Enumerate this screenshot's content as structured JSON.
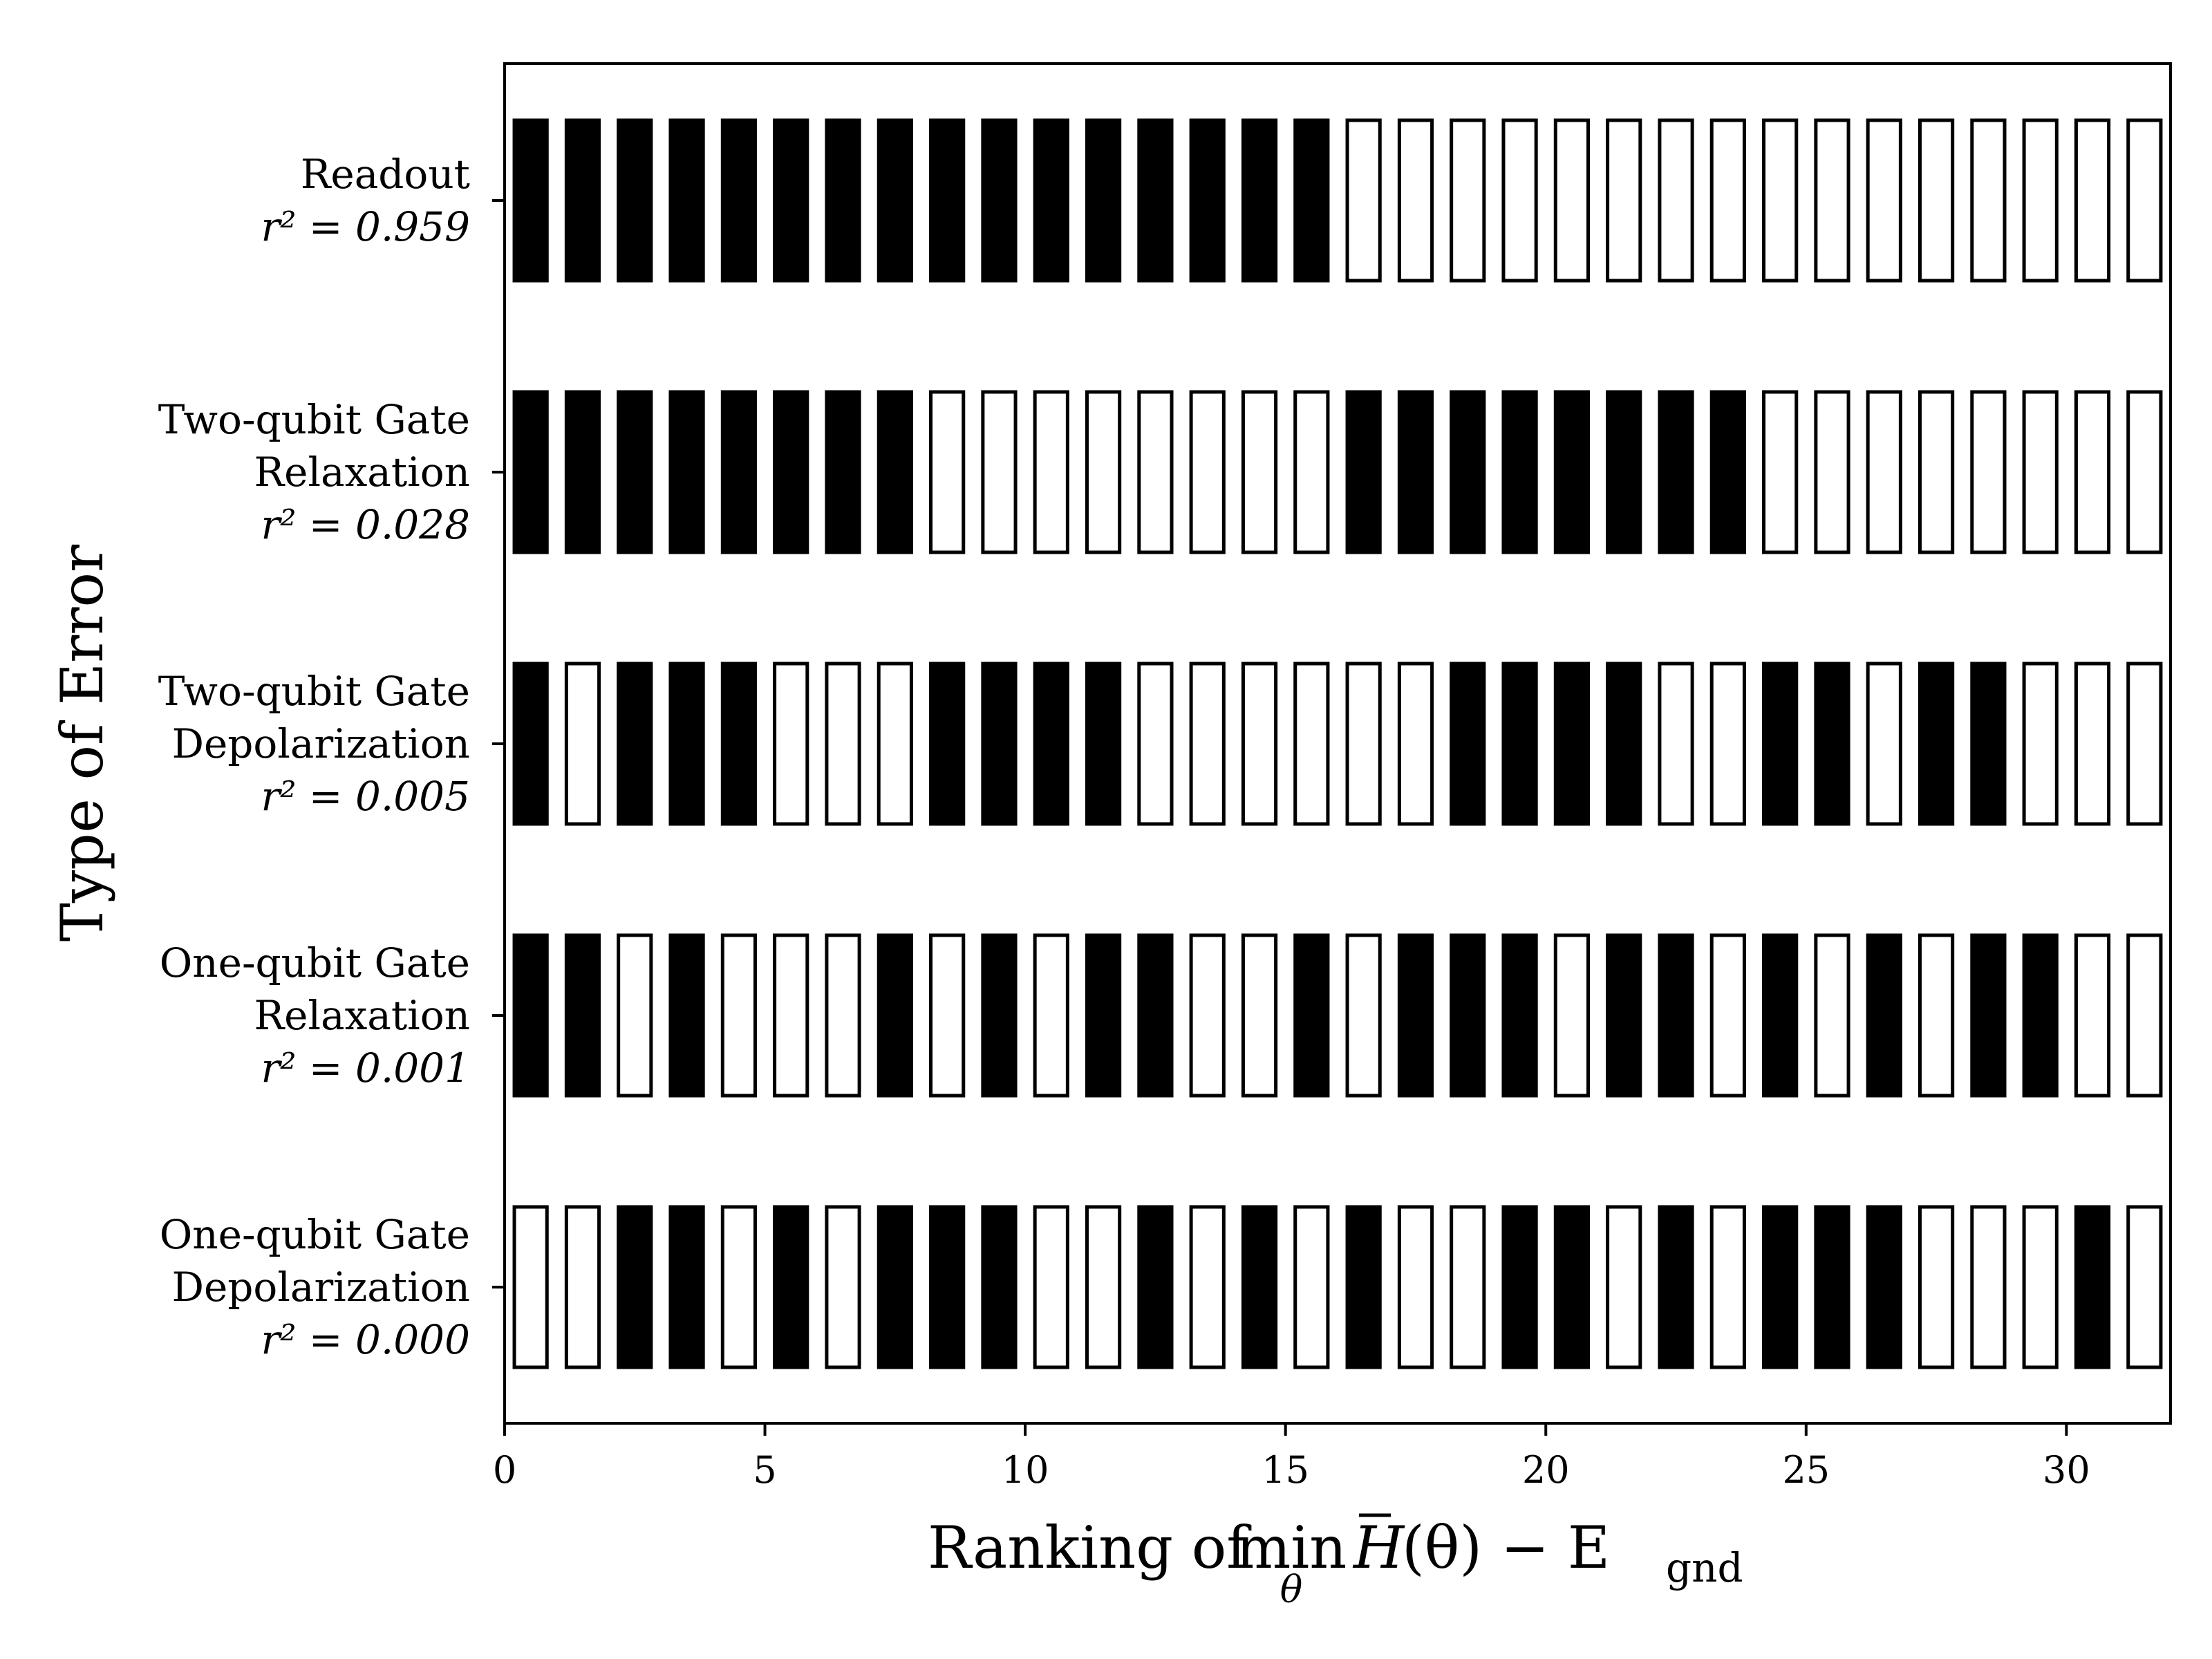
{
  "chart_data": {
    "type": "heatmap",
    "xlabel": {
      "prefix": "Ranking of ",
      "op": "min",
      "op_sub": "θ",
      "expr_hbar": "H",
      "expr_rest": "(θ) − E",
      "expr_sub": "gnd"
    },
    "ylabel": "Type of Error",
    "xlim": [
      0,
      32
    ],
    "xticks": [
      "0",
      "5",
      "10",
      "15",
      "20",
      "25",
      "30"
    ],
    "xtick_values": [
      0,
      5,
      10,
      15,
      20,
      25,
      30
    ],
    "grid": false,
    "fill_color": "#000000",
    "empty_color": "#ffffff",
    "categories": [
      {
        "lines": [
          "Readout"
        ],
        "r2": "r² = 0.959"
      },
      {
        "lines": [
          "Two-qubit Gate",
          "Relaxation"
        ],
        "r2": "r² = 0.028"
      },
      {
        "lines": [
          "Two-qubit Gate",
          "Depolarization"
        ],
        "r2": "r² = 0.005"
      },
      {
        "lines": [
          "One-qubit Gate",
          "Relaxation"
        ],
        "r2": "r² = 0.001"
      },
      {
        "lines": [
          "One-qubit Gate",
          "Depolarization"
        ],
        "r2": "r² = 0.000"
      }
    ],
    "rows": [
      [
        1,
        1,
        1,
        1,
        1,
        1,
        1,
        1,
        1,
        1,
        1,
        1,
        1,
        1,
        1,
        1,
        0,
        0,
        0,
        0,
        0,
        0,
        0,
        0,
        0,
        0,
        0,
        0,
        0,
        0,
        0,
        0
      ],
      [
        1,
        1,
        1,
        1,
        1,
        1,
        1,
        1,
        0,
        0,
        0,
        0,
        0,
        0,
        0,
        0,
        1,
        1,
        1,
        1,
        1,
        1,
        1,
        1,
        0,
        0,
        0,
        0,
        0,
        0,
        0,
        0
      ],
      [
        1,
        0,
        1,
        1,
        1,
        0,
        0,
        0,
        1,
        1,
        1,
        1,
        0,
        0,
        0,
        0,
        0,
        0,
        1,
        1,
        1,
        1,
        0,
        0,
        1,
        1,
        0,
        1,
        1,
        0,
        0,
        0
      ],
      [
        1,
        1,
        0,
        1,
        0,
        0,
        0,
        1,
        0,
        1,
        0,
        1,
        1,
        0,
        0,
        1,
        0,
        1,
        1,
        1,
        0,
        1,
        1,
        0,
        1,
        0,
        1,
        0,
        1,
        1,
        0,
        0
      ],
      [
        0,
        0,
        1,
        1,
        0,
        1,
        0,
        1,
        1,
        1,
        0,
        0,
        1,
        0,
        1,
        0,
        1,
        0,
        0,
        1,
        1,
        0,
        1,
        0,
        1,
        1,
        1,
        0,
        0,
        0,
        1,
        0
      ]
    ]
  }
}
